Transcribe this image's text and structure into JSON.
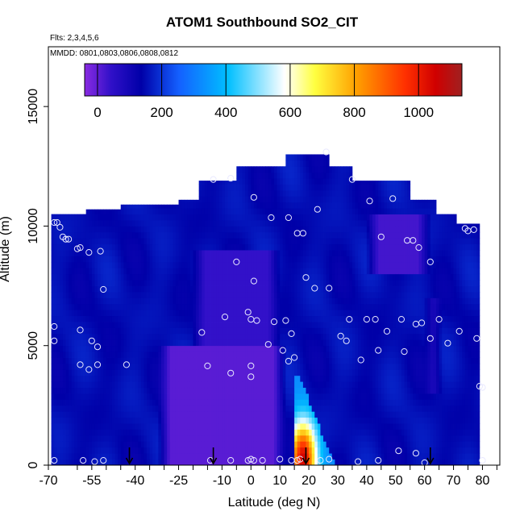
{
  "chart_data": {
    "type": "heatmap",
    "title": "ATOM1 Southbound SO2_CIT",
    "subtitle_flights": "Flts: 2,3,4,5,6",
    "subtitle_dates": "MMDD: 0801,0803,0806,0808,0812",
    "xlabel": "Latitude (deg N)",
    "ylabel": "Altitude (m)",
    "xlim": [
      -70,
      86
    ],
    "ylim": [
      0,
      17500
    ],
    "x_ticks": [
      "-70",
      "-55",
      "-40",
      "-25",
      "-10",
      "0",
      "10",
      "20",
      "30",
      "40",
      "50",
      "60",
      "70",
      "80"
    ],
    "x_tick_values": [
      -70,
      -55,
      -40,
      -25,
      -10,
      0,
      10,
      20,
      30,
      40,
      50,
      60,
      70,
      80
    ],
    "x_minor_ticks": [
      -60,
      -50,
      -45,
      -35,
      -30,
      -20,
      -15,
      -5,
      5,
      15,
      25,
      35,
      45,
      55,
      65,
      75,
      85
    ],
    "y_ticks": [
      "0",
      "5000",
      "10000",
      "15000"
    ],
    "y_tick_values": [
      0,
      5000,
      10000,
      15000
    ],
    "colorbar": {
      "min": -40,
      "max": 1135,
      "ticks": [
        "0",
        "200",
        "400",
        "600",
        "800",
        "1000"
      ],
      "tick_values": [
        0,
        200,
        400,
        600,
        800,
        1000
      ],
      "colors": [
        "#8a2be2",
        "#0000a8",
        "#1e90ff",
        "#00bfff",
        "#ffffff",
        "#ffff00",
        "#ffa500",
        "#ff4500",
        "#d00000",
        "#a02020"
      ]
    },
    "background_value": 150,
    "column_tops": [
      {
        "lat_from": -69,
        "lat_to": -57,
        "top": 10500
      },
      {
        "lat_from": -57,
        "lat_to": -45,
        "top": 10700
      },
      {
        "lat_from": -45,
        "lat_to": -25,
        "top": 10900
      },
      {
        "lat_from": -25,
        "lat_to": -18,
        "top": 11100
      },
      {
        "lat_from": -18,
        "lat_to": -5,
        "top": 11900
      },
      {
        "lat_from": -5,
        "lat_to": 12,
        "top": 12500
      },
      {
        "lat_from": 12,
        "lat_to": 27,
        "top": 13000
      },
      {
        "lat_from": 27,
        "lat_to": 35,
        "top": 12500
      },
      {
        "lat_from": 35,
        "lat_to": 55,
        "top": 11900
      },
      {
        "lat_from": 55,
        "lat_to": 64,
        "top": 11100
      },
      {
        "lat_from": 64,
        "lat_to": 71,
        "top": 10500
      },
      {
        "lat_from": 71,
        "lat_to": 79,
        "top": 10100
      }
    ],
    "low_regions": [
      {
        "lat_from": -32,
        "lat_to": 12,
        "alt_from": 0,
        "alt_to": 5000,
        "value": 5
      },
      {
        "lat_from": -20,
        "lat_to": 10,
        "alt_from": 5000,
        "alt_to": 9000,
        "value": 40
      },
      {
        "lat_from": 40,
        "lat_to": 62,
        "alt_from": 8000,
        "alt_to": 10500,
        "value": 25
      },
      {
        "lat_from": 60,
        "lat_to": 66,
        "alt_from": 3000,
        "alt_to": 7000,
        "value": 60
      }
    ],
    "plume": {
      "lat_from": 15,
      "lat_to": 29,
      "alt_from": 0,
      "alt_to": 3800,
      "peak_value": 1050,
      "peak_lat": 18,
      "peak_alt": 300
    },
    "observations": [
      [
        -68,
        10150
      ],
      [
        -67,
        10150
      ],
      [
        -66,
        9950
      ],
      [
        -65,
        9550
      ],
      [
        -64,
        9450
      ],
      [
        -63,
        9450
      ],
      [
        -60,
        9050
      ],
      [
        -59,
        9100
      ],
      [
        -56,
        8900
      ],
      [
        -52,
        8950
      ],
      [
        -51,
        7350
      ],
      [
        -68,
        5800
      ],
      [
        -68,
        5200
      ],
      [
        -59,
        5650
      ],
      [
        -55,
        5200
      ],
      [
        -53,
        4950
      ],
      [
        -59,
        4200
      ],
      [
        -56,
        4000
      ],
      [
        -53,
        4200
      ],
      [
        -43,
        4200
      ],
      [
        -68,
        200
      ],
      [
        -58,
        200
      ],
      [
        -54,
        150
      ],
      [
        -51,
        200
      ],
      [
        -13,
        11950
      ],
      [
        -7,
        12000
      ],
      [
        1,
        11200
      ],
      [
        -5,
        8500
      ],
      [
        1,
        7700
      ],
      [
        -17,
        5550
      ],
      [
        -9,
        6200
      ],
      [
        -1,
        6400
      ],
      [
        0,
        6100
      ],
      [
        2,
        6050
      ],
      [
        8,
        6000
      ],
      [
        12,
        6050
      ],
      [
        6,
        5050
      ],
      [
        11,
        4800
      ],
      [
        13,
        4350
      ],
      [
        15,
        4500
      ],
      [
        14,
        5500
      ],
      [
        0,
        3700
      ],
      [
        -7,
        3850
      ],
      [
        -15,
        4150
      ],
      [
        0,
        4150
      ],
      [
        -14,
        200
      ],
      [
        -7,
        200
      ],
      [
        -1,
        200
      ],
      [
        0,
        250
      ],
      [
        1,
        200
      ],
      [
        4,
        200
      ],
      [
        10,
        250
      ],
      [
        14,
        200
      ],
      [
        16,
        200
      ],
      [
        17,
        250
      ],
      [
        24,
        200
      ],
      [
        27,
        250
      ],
      [
        7,
        10350
      ],
      [
        13,
        10350
      ],
      [
        16,
        9700
      ],
      [
        18,
        9700
      ],
      [
        23,
        10700
      ],
      [
        35,
        11950
      ],
      [
        41,
        11050
      ],
      [
        45,
        9550
      ],
      [
        49,
        11150
      ],
      [
        19,
        7850
      ],
      [
        22,
        7400
      ],
      [
        27,
        7400
      ],
      [
        34,
        6100
      ],
      [
        40,
        6100
      ],
      [
        43,
        6100
      ],
      [
        47,
        5600
      ],
      [
        52,
        6100
      ],
      [
        57,
        5900
      ],
      [
        59,
        5950
      ],
      [
        62,
        5300
      ],
      [
        65,
        6100
      ],
      [
        68,
        5100
      ],
      [
        72,
        5600
      ],
      [
        38,
        4400
      ],
      [
        44,
        4800
      ],
      [
        53,
        4750
      ],
      [
        31,
        5400
      ],
      [
        33,
        5200
      ],
      [
        54,
        9400
      ],
      [
        56,
        9400
      ],
      [
        58,
        9100
      ],
      [
        62,
        8500
      ],
      [
        74,
        9900
      ],
      [
        75,
        9800
      ],
      [
        77,
        9850
      ],
      [
        78,
        5300
      ],
      [
        79,
        3300
      ],
      [
        80,
        3250
      ],
      [
        80,
        200
      ],
      [
        37,
        150
      ],
      [
        44,
        200
      ],
      [
        51,
        600
      ],
      [
        57,
        500
      ],
      [
        60,
        100
      ],
      [
        26,
        13100
      ]
    ],
    "arrows_at_lat": [
      -42,
      -13,
      19,
      62
    ]
  }
}
